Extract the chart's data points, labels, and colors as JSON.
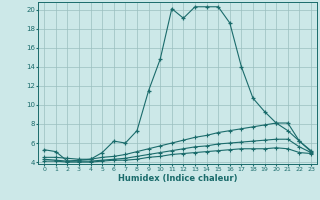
{
  "title": "",
  "xlabel": "Humidex (Indice chaleur)",
  "ylabel": "",
  "background_color": "#cce8e8",
  "grid_color": "#9bbfbf",
  "line_color": "#1a6b6b",
  "xlim": [
    -0.5,
    23.5
  ],
  "ylim": [
    3.8,
    20.8
  ],
  "yticks": [
    4,
    6,
    8,
    10,
    12,
    14,
    16,
    18,
    20
  ],
  "xticks": [
    0,
    1,
    2,
    3,
    4,
    5,
    6,
    7,
    8,
    9,
    10,
    11,
    12,
    13,
    14,
    15,
    16,
    17,
    18,
    19,
    20,
    21,
    22,
    23
  ],
  "line1_x": [
    0,
    1,
    2,
    3,
    4,
    5,
    6,
    7,
    8,
    9,
    10,
    11,
    12,
    13,
    14,
    15,
    16,
    17,
    18,
    19,
    20,
    21,
    22,
    23
  ],
  "line1_y": [
    5.3,
    5.1,
    4.1,
    4.2,
    4.3,
    5.0,
    6.2,
    6.0,
    7.3,
    11.5,
    14.8,
    20.1,
    19.1,
    20.3,
    20.3,
    20.3,
    18.6,
    14.0,
    10.7,
    9.3,
    8.1,
    8.1,
    6.2,
    5.2
  ],
  "line2_x": [
    0,
    1,
    2,
    3,
    4,
    5,
    6,
    7,
    8,
    9,
    10,
    11,
    12,
    13,
    14,
    15,
    16,
    17,
    18,
    19,
    20,
    21,
    22,
    23
  ],
  "line2_y": [
    4.5,
    4.5,
    4.4,
    4.3,
    4.3,
    4.5,
    4.6,
    4.8,
    5.1,
    5.4,
    5.7,
    6.0,
    6.3,
    6.6,
    6.8,
    7.1,
    7.3,
    7.5,
    7.7,
    7.9,
    8.1,
    7.3,
    6.2,
    5.1
  ],
  "line3_x": [
    0,
    1,
    2,
    3,
    4,
    5,
    6,
    7,
    8,
    9,
    10,
    11,
    12,
    13,
    14,
    15,
    16,
    17,
    18,
    19,
    20,
    21,
    22,
    23
  ],
  "line3_y": [
    4.3,
    4.2,
    4.1,
    4.1,
    4.1,
    4.2,
    4.3,
    4.4,
    4.6,
    4.8,
    5.0,
    5.2,
    5.4,
    5.6,
    5.7,
    5.9,
    6.0,
    6.1,
    6.2,
    6.3,
    6.4,
    6.4,
    5.6,
    5.0
  ],
  "line4_x": [
    0,
    1,
    2,
    3,
    4,
    5,
    6,
    7,
    8,
    9,
    10,
    11,
    12,
    13,
    14,
    15,
    16,
    17,
    18,
    19,
    20,
    21,
    22,
    23
  ],
  "line4_y": [
    4.1,
    4.1,
    4.0,
    4.0,
    4.0,
    4.1,
    4.2,
    4.2,
    4.3,
    4.5,
    4.6,
    4.8,
    4.9,
    5.0,
    5.1,
    5.2,
    5.3,
    5.4,
    5.4,
    5.4,
    5.5,
    5.4,
    5.0,
    4.9
  ]
}
